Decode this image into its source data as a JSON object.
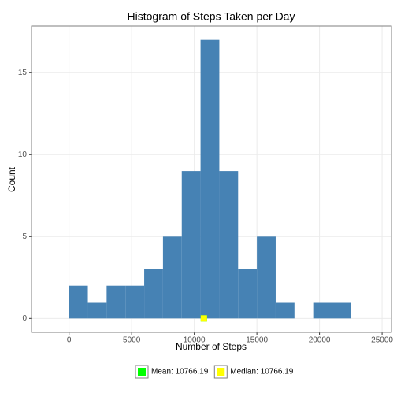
{
  "chart_data": {
    "type": "histogram",
    "title": "Histogram of Steps Taken per Day",
    "x_label": "Number of Steps",
    "y_label": "Count",
    "bins": [
      0,
      1500,
      3000,
      4500,
      6000,
      7500,
      9000,
      10500,
      12000,
      13500,
      15000,
      16500,
      18000,
      19500,
      21000,
      22500
    ],
    "values": [
      2,
      1,
      2,
      2,
      3,
      5,
      9,
      17,
      9,
      3,
      5,
      1,
      0,
      1,
      1
    ],
    "color": "#4682b4",
    "markers": [
      {
        "name": "Mean: 10766.19",
        "color": "#00ff00",
        "x": 10766.19,
        "y": 0
      },
      {
        "name": "Median: 10766.19",
        "color": "#ffff00",
        "x": 10766.19,
        "y": 0
      }
    ],
    "xlim": [
      -3000,
      25750
    ],
    "xticks": [
      0,
      5000,
      10000,
      15000,
      20000,
      25000
    ],
    "ylim": [
      -0.85,
      17.85
    ],
    "yticks": [
      0,
      5,
      10,
      15
    ],
    "grid": true,
    "legend": "bottom"
  }
}
